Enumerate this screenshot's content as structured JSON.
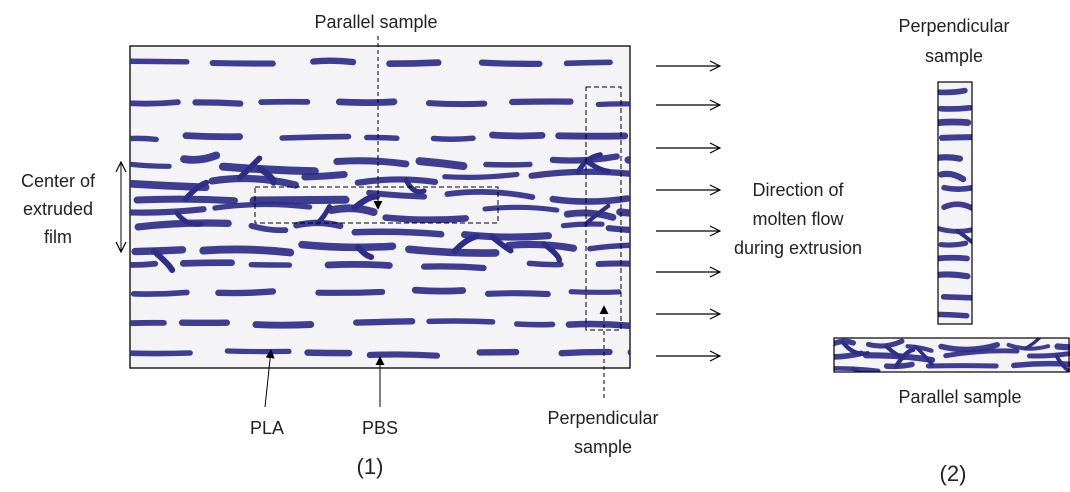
{
  "panel1": {
    "top_label": "Parallel sample",
    "left_label_lines": [
      "Center of",
      "extruded",
      "film"
    ],
    "flow_label_lines": [
      "Direction of",
      "molten flow",
      "during extrusion"
    ],
    "pla_label": "PLA",
    "pbs_label": "PBS",
    "perp_label_lines": [
      "Perpendicular",
      "sample"
    ],
    "caption": "(1)"
  },
  "panel2": {
    "perp_label_lines": [
      "Perpendicular",
      "sample"
    ],
    "parallel_label": "Parallel sample",
    "caption": "(2)"
  },
  "colors": {
    "ink": "#2e2d88",
    "paper": "#f4f4f6",
    "line": "#000000"
  }
}
